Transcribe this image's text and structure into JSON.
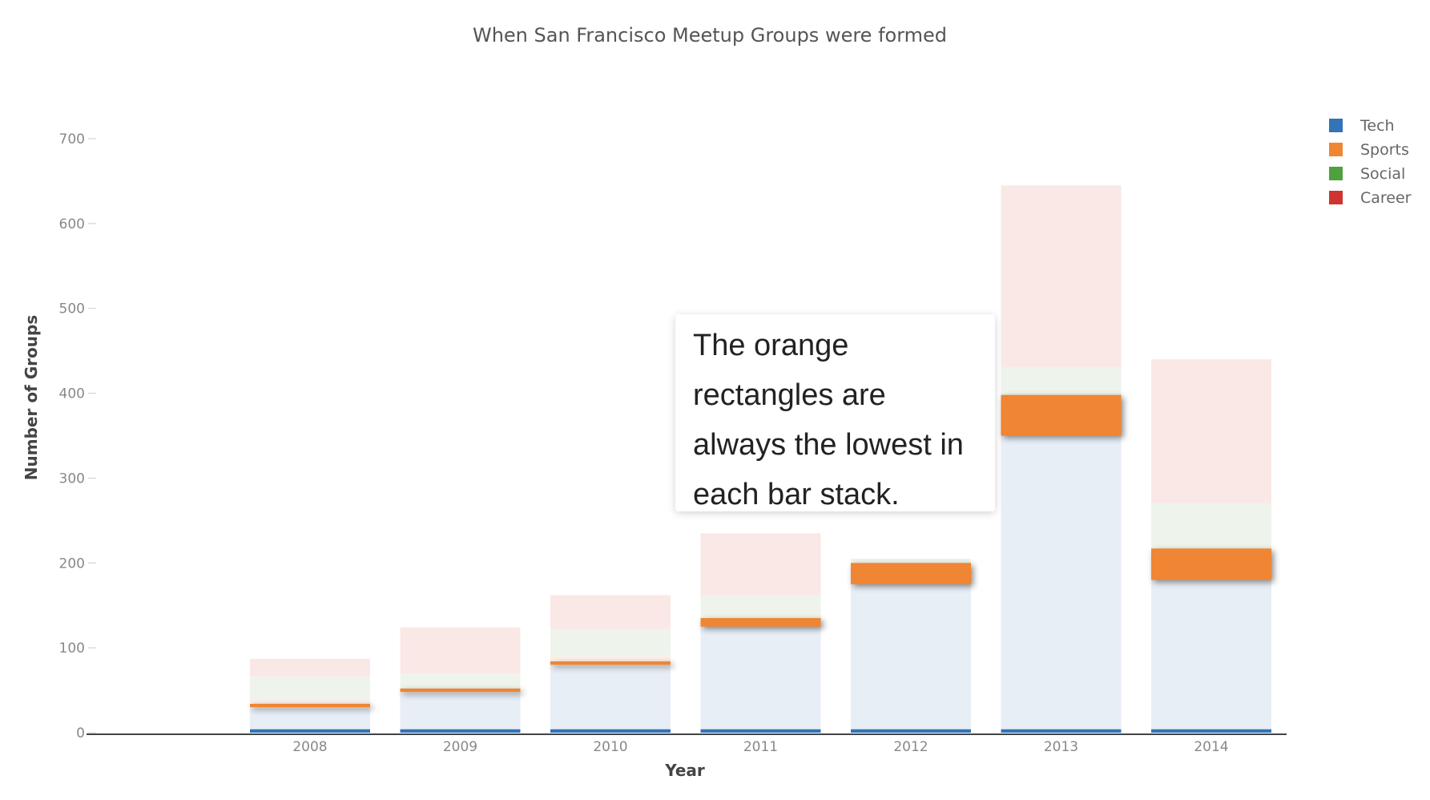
{
  "chart_data": {
    "type": "bar",
    "stacked": true,
    "title": "When San Francisco Meetup Groups were formed",
    "xlabel": "Year",
    "ylabel": "Number of Groups",
    "categories": [
      "2008",
      "2009",
      "2010",
      "2011",
      "2012",
      "2013",
      "2014"
    ],
    "ylim": [
      0,
      700
    ],
    "yticks": [
      0,
      100,
      200,
      300,
      400,
      500,
      600,
      700
    ],
    "grid": false,
    "legend_position": "top-right",
    "legend": [
      {
        "name": "Tech",
        "color": "#3274b6"
      },
      {
        "name": "Sports",
        "color": "#f08533"
      },
      {
        "name": "Social",
        "color": "#4ea13f"
      },
      {
        "name": "Career",
        "color": "#cf3430"
      }
    ],
    "series": [
      {
        "name": "Tech",
        "values": [
          4,
          4,
          4,
          4,
          4,
          4,
          4
        ]
      },
      {
        "name": "Sports",
        "values": [
          4,
          4,
          4,
          10,
          25,
          48,
          37
        ]
      },
      {
        "name": "Social",
        "values": [
          30,
          48,
          80,
          125,
          175,
          350,
          180
        ]
      },
      {
        "name": "Career",
        "values": [
          0,
          0,
          0,
          0,
          0,
          0,
          0
        ]
      }
    ],
    "faded_segments": [
      {
        "name": "segment-1",
        "color": "#e8eef6",
        "values": [
          30,
          48,
          80,
          125,
          175,
          350,
          180
        ]
      },
      {
        "name": "segment-2",
        "color": "#fdeee6",
        "values": [
          8,
          0,
          10,
          0,
          0,
          0,
          0
        ]
      },
      {
        "name": "segment-3",
        "color": "#eef4ec",
        "values": [
          28,
          22,
          32,
          37,
          30,
          80,
          90
        ]
      },
      {
        "name": "segment-4",
        "color": "#fae8e6",
        "values": [
          21,
          54,
          40,
          73,
          0,
          215,
          170
        ]
      }
    ],
    "highlight_color": "#f08533",
    "baseline_color": "#3274b6"
  },
  "annotation": {
    "text": "The orange rectangles are always the lowest in each bar stack."
  }
}
